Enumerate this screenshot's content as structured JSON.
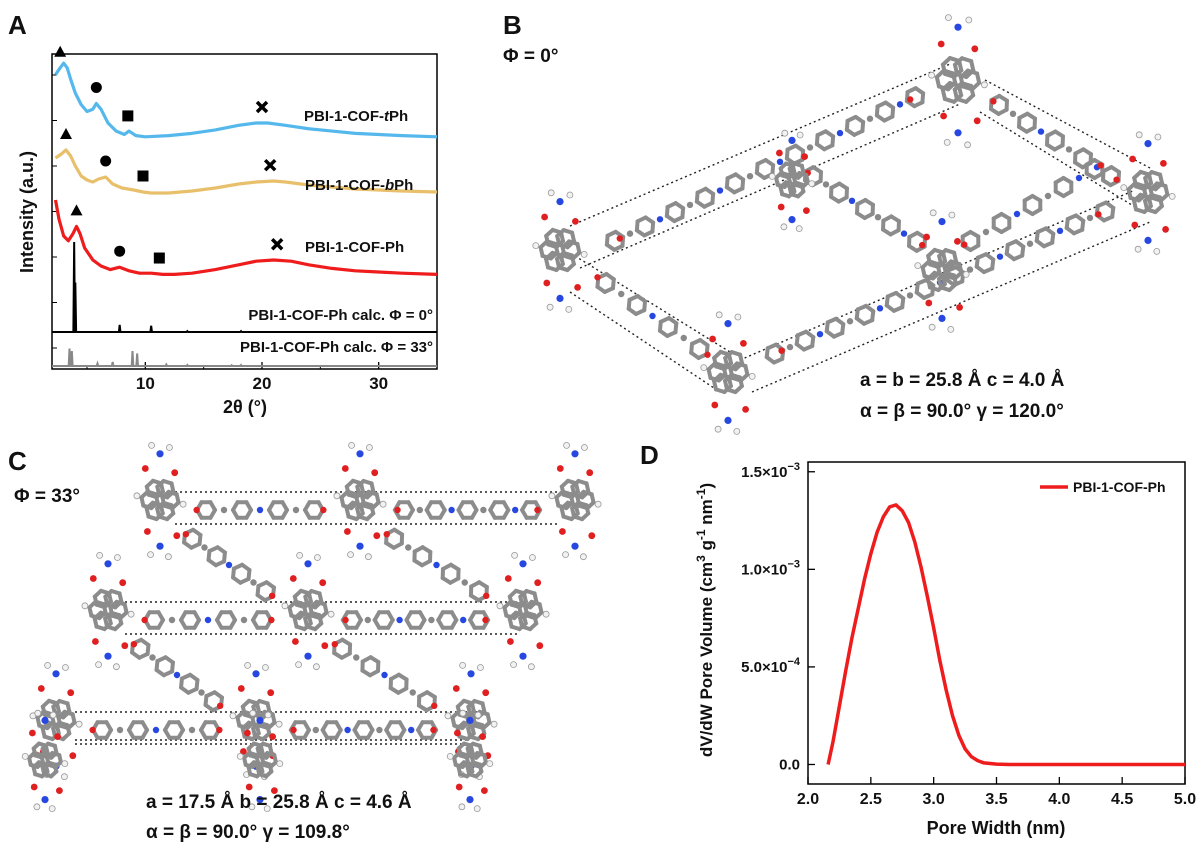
{
  "panels": {
    "a": {
      "label": "A",
      "chart_data": {
        "type": "line",
        "xlabel": "2θ (°)",
        "ylabel": "Intensity (a.u.)",
        "xlim": [
          2,
          35
        ],
        "x_ticks": [
          "10",
          "20",
          "30"
        ],
        "series": [
          {
            "name": "PBI-1-COF-tPh",
            "name_parts": [
              "PBI-1-COF-",
              "t",
              "Ph"
            ],
            "color": "#55b8ec",
            "x": [
              2.3,
              2.7,
              3.0,
              3.3,
              3.6,
              4.0,
              4.5,
              5.0,
              5.5,
              5.8,
              6.2,
              6.8,
              7.5,
              8.2,
              8.6,
              9.2,
              10,
              12,
              14,
              16,
              18,
              19.5,
              20.5,
              22,
              24,
              26,
              28,
              30,
              32,
              35
            ],
            "y": [
              0.82,
              0.88,
              0.92,
              0.88,
              0.78,
              0.66,
              0.56,
              0.5,
              0.52,
              0.57,
              0.52,
              0.4,
              0.33,
              0.3,
              0.33,
              0.29,
              0.28,
              0.29,
              0.31,
              0.34,
              0.38,
              0.4,
              0.4,
              0.38,
              0.35,
              0.33,
              0.31,
              0.3,
              0.29,
              0.28
            ]
          },
          {
            "name": "PBI-1-COF-bPh",
            "name_parts": [
              "PBI-1-COF-",
              "b",
              "Ph"
            ],
            "color": "#e8c06c",
            "x": [
              2.3,
              2.8,
              3.2,
              3.6,
              4.0,
              4.5,
              5.0,
              5.5,
              6.0,
              6.6,
              7.2,
              8.0,
              9.0,
              9.8,
              10.5,
              12,
              14,
              16,
              18,
              19.5,
              21,
              22,
              24,
              26,
              28,
              30,
              32,
              35
            ],
            "y": [
              0.62,
              0.66,
              0.7,
              0.64,
              0.54,
              0.44,
              0.4,
              0.38,
              0.41,
              0.43,
              0.36,
              0.32,
              0.3,
              0.28,
              0.27,
              0.27,
              0.29,
              0.32,
              0.36,
              0.38,
              0.39,
              0.38,
              0.35,
              0.33,
              0.31,
              0.3,
              0.29,
              0.28
            ]
          },
          {
            "name": "PBI-1-COF-Ph",
            "name_parts": [
              "PBI-1-COF-Ph",
              "",
              ""
            ],
            "color": "#ee1c1c",
            "x": [
              2.3,
              2.6,
              3.0,
              3.4,
              3.8,
              4.1,
              4.4,
              4.8,
              5.5,
              6.2,
              7.0,
              7.8,
              8.6,
              9.5,
              10.5,
              11.5,
              12.5,
              14,
              16,
              18,
              19.5,
              21,
              22.5,
              24,
              26,
              28,
              30,
              32,
              35
            ],
            "y": [
              0.8,
              0.64,
              0.5,
              0.46,
              0.52,
              0.58,
              0.52,
              0.4,
              0.3,
              0.25,
              0.22,
              0.24,
              0.21,
              0.19,
              0.19,
              0.18,
              0.18,
              0.19,
              0.22,
              0.26,
              0.29,
              0.3,
              0.29,
              0.26,
              0.23,
              0.21,
              0.2,
              0.19,
              0.18
            ]
          }
        ],
        "markers": [
          {
            "series": "PBI-1-COF-tPh",
            "symbol": "triangle",
            "x": 2.7
          },
          {
            "series": "PBI-1-COF-tPh",
            "symbol": "circle",
            "x": 5.8
          },
          {
            "series": "PBI-1-COF-tPh",
            "symbol": "square",
            "x": 8.5
          },
          {
            "series": "PBI-1-COF-tPh",
            "symbol": "cross",
            "x": 20.0
          },
          {
            "series": "PBI-1-COF-bPh",
            "symbol": "triangle",
            "x": 3.2
          },
          {
            "series": "PBI-1-COF-bPh",
            "symbol": "circle",
            "x": 6.6
          },
          {
            "series": "PBI-1-COF-bPh",
            "symbol": "square",
            "x": 9.8
          },
          {
            "series": "PBI-1-COF-bPh",
            "symbol": "cross",
            "x": 20.7
          },
          {
            "series": "PBI-1-COF-Ph",
            "symbol": "triangle",
            "x": 4.1
          },
          {
            "series": "PBI-1-COF-Ph",
            "symbol": "circle",
            "x": 7.8
          },
          {
            "series": "PBI-1-COF-Ph",
            "symbol": "square",
            "x": 11.2
          },
          {
            "series": "PBI-1-COF-Ph",
            "symbol": "cross",
            "x": 21.3
          }
        ],
        "calculated": [
          {
            "label": "PBI-1-COF-Ph calc. Φ = 0°",
            "color": "#000000",
            "peaks": [
              [
                3.9,
                1.0
              ],
              [
                4.0,
                0.55
              ],
              [
                7.8,
                0.08
              ],
              [
                10.5,
                0.07
              ],
              [
                13.6,
                0.01
              ],
              [
                18.2,
                0.01
              ]
            ]
          },
          {
            "label": "PBI-1-COF-Ph calc. Φ = 33°",
            "color": "#888888",
            "peaks": [
              [
                3.5,
                0.35
              ],
              [
                3.7,
                0.3
              ],
              [
                5.9,
                0.05
              ],
              [
                7.2,
                0.08
              ],
              [
                8.9,
                0.3
              ],
              [
                9.3,
                0.25
              ],
              [
                11.8,
                0.03
              ],
              [
                13.6,
                0.02
              ],
              [
                17.4,
                0.015
              ],
              [
                18.2,
                0.02
              ]
            ]
          }
        ]
      }
    },
    "b": {
      "label": "B",
      "phi": "Φ = 0°",
      "cell_line1": "a = b = 25.8 Å c = 4.0 Å",
      "cell_line2": "α = β = 90.0°  γ = 120.0°"
    },
    "c": {
      "label": "C",
      "phi": "Φ = 33°",
      "cell_line1": "a = 17.5 Å b = 25.8 Å c = 4.6 Å",
      "cell_line2": "α = β = 90.0°  γ = 109.8°"
    },
    "d": {
      "label": "D",
      "chart_data": {
        "type": "line",
        "xlabel": "Pore Width (nm)",
        "ylabel_parts": [
          "dV/dW Pore Volume (cm",
          "3",
          " g",
          "-1",
          " nm",
          "-1",
          ")"
        ],
        "xlim": [
          2.0,
          5.0
        ],
        "ylim": [
          -0.0001,
          0.00155
        ],
        "x_ticks": [
          "2.0",
          "2.5",
          "3.0",
          "3.5",
          "4.0",
          "4.5",
          "5.0"
        ],
        "y_ticks": [
          {
            "value": 0,
            "base": "0.0",
            "exp": ""
          },
          {
            "value": 0.0005,
            "base": "5.0×10",
            "exp": "−4"
          },
          {
            "value": 0.001,
            "base": "1.0×10",
            "exp": "−3"
          },
          {
            "value": 0.0015,
            "base": "1.5×10",
            "exp": "−3"
          }
        ],
        "series": [
          {
            "name": "PBI-1-COF-Ph",
            "color": "#ee1c1c",
            "x": [
              2.16,
              2.2,
              2.25,
              2.3,
              2.35,
              2.4,
              2.45,
              2.5,
              2.55,
              2.6,
              2.65,
              2.7,
              2.75,
              2.8,
              2.85,
              2.9,
              2.95,
              3.0,
              3.05,
              3.1,
              3.15,
              3.2,
              3.25,
              3.3,
              3.35,
              3.4,
              3.5,
              3.6,
              3.8,
              4.0,
              4.5,
              5.0
            ],
            "y": [
              0.0,
              0.00012,
              0.0003,
              0.00048,
              0.00065,
              0.0008,
              0.00095,
              0.00108,
              0.00119,
              0.00127,
              0.00132,
              0.00133,
              0.0013,
              0.00124,
              0.00114,
              0.00101,
              0.00086,
              0.0007,
              0.00053,
              0.00038,
              0.00025,
              0.00015,
              8e-05,
              4e-05,
              2e-05,
              8e-06,
              2e-06,
              0.0,
              0.0,
              0.0,
              0.0,
              0.0
            ]
          }
        ],
        "legend": "top-right"
      }
    }
  }
}
